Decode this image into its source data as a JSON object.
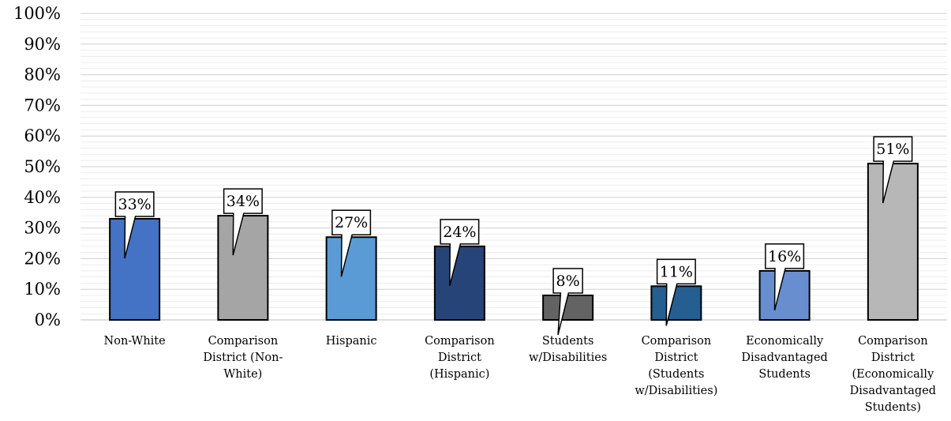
{
  "chart_data": {
    "type": "bar",
    "title": "",
    "xlabel": "",
    "ylabel": "",
    "ylim": [
      0,
      100
    ],
    "y_ticks": [
      "0%",
      "10%",
      "20%",
      "30%",
      "40%",
      "50%",
      "60%",
      "70%",
      "80%",
      "90%",
      "100%"
    ],
    "grid": true,
    "legend": "none",
    "categories": [
      [
        "Non-White"
      ],
      [
        "Comparison",
        "District (Non-",
        "White)"
      ],
      [
        "Hispanic"
      ],
      [
        "Comparison",
        "District",
        "(Hispanic)"
      ],
      [
        "Students",
        "w/Disabilities"
      ],
      [
        "Comparison",
        "District",
        "(Students",
        "w/Disabilities)"
      ],
      [
        "Economically",
        "Disadvantaged",
        "Students"
      ],
      [
        "Comparison",
        "District",
        "(Economically",
        "Disadvantaged",
        "Students)"
      ]
    ],
    "values": [
      33,
      34,
      27,
      24,
      8,
      11,
      16,
      51
    ],
    "data_labels": [
      "33%",
      "34%",
      "27%",
      "24%",
      "8%",
      "11%",
      "16%",
      "51%"
    ],
    "colors": [
      "#4472c4",
      "#a5a5a5",
      "#5b9bd5",
      "#264478",
      "#636363",
      "#255e91",
      "#698ed0",
      "#b7b7b7"
    ]
  }
}
